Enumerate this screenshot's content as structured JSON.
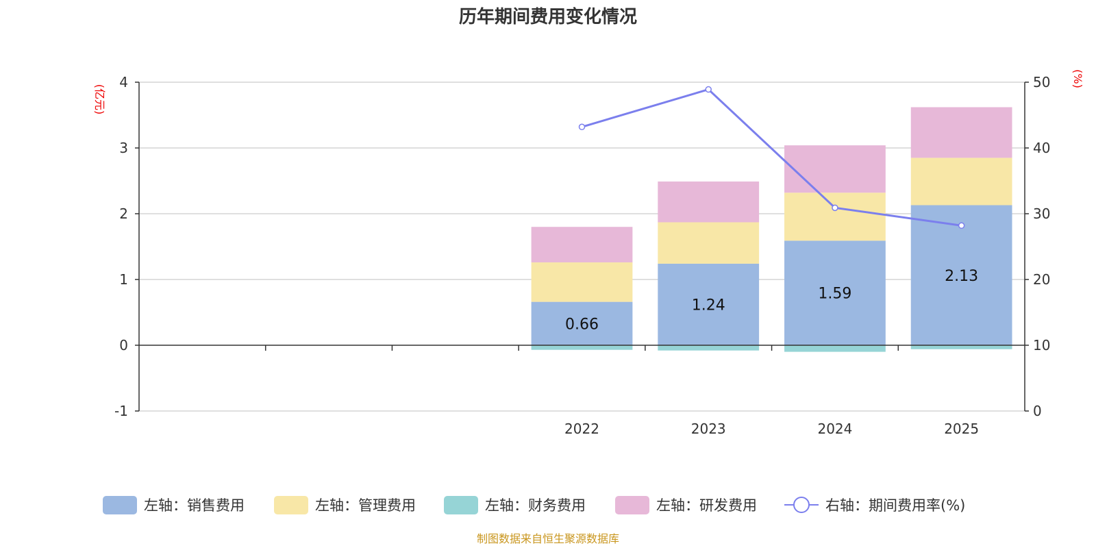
{
  "chart_data": {
    "type": "bar",
    "stacked": true,
    "title": "历年期间费用变化情况",
    "categories": [
      "",
      "",
      "",
      "2022",
      "2023",
      "2024",
      "2025"
    ],
    "left_axis": {
      "unit": "(亿元)",
      "ylim": [
        -1,
        4
      ],
      "ticks": [
        "4",
        "3",
        "2",
        "1",
        "0",
        "-1"
      ],
      "tick_values": [
        4,
        3,
        2,
        1,
        0,
        -1
      ]
    },
    "right_axis": {
      "unit": "(%)",
      "ylim": [
        0,
        50
      ],
      "ticks": [
        "50",
        "40",
        "30",
        "20",
        "10",
        "0"
      ],
      "tick_values": [
        50,
        40,
        30,
        20,
        10,
        0
      ]
    },
    "series": [
      {
        "name": "左轴：销售费用",
        "color": "#9bb8e1",
        "axis": "left",
        "values": [
          null,
          null,
          null,
          0.66,
          1.24,
          1.59,
          2.13
        ],
        "labels": [
          "",
          "",
          "",
          "0.66",
          "1.24",
          "1.59",
          "2.13"
        ]
      },
      {
        "name": "左轴：管理费用",
        "color": "#f8e7a7",
        "axis": "left",
        "values": [
          null,
          null,
          null,
          0.6,
          0.63,
          0.73,
          0.72
        ]
      },
      {
        "name": "左轴：财务费用",
        "color": "#96d4d6",
        "axis": "left",
        "values": [
          null,
          null,
          null,
          -0.07,
          -0.08,
          -0.1,
          -0.06
        ]
      },
      {
        "name": "左轴：研发费用",
        "color": "#e7b8d8",
        "axis": "left",
        "values": [
          null,
          null,
          null,
          0.54,
          0.62,
          0.72,
          0.77
        ]
      },
      {
        "name": "右轴：期间费用率(%)",
        "color": "#7b7fed",
        "axis": "right",
        "type": "line",
        "values": [
          null,
          null,
          null,
          43.2,
          48.9,
          30.9,
          28.2
        ]
      }
    ],
    "source": "制图数据来自恒生聚源数据库"
  }
}
